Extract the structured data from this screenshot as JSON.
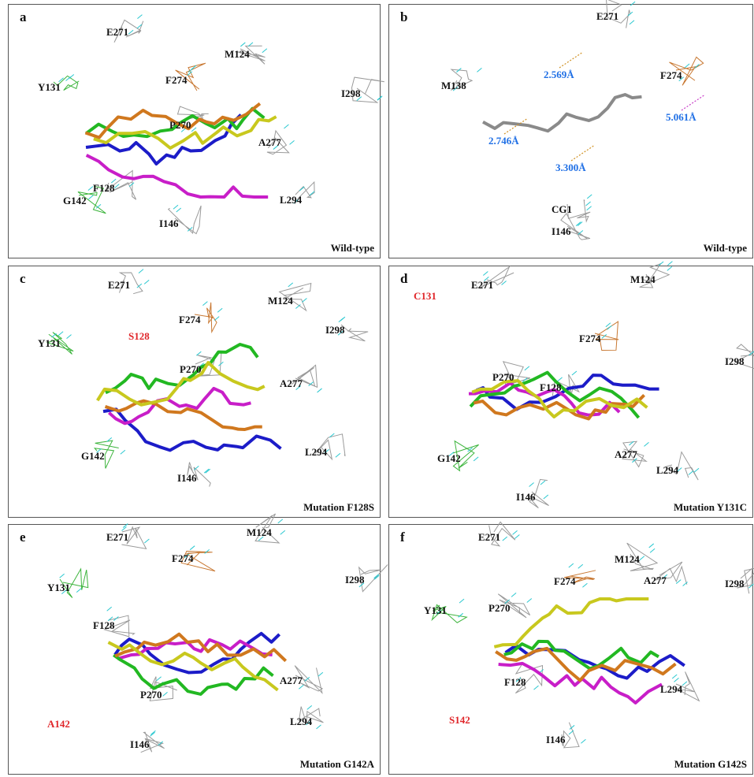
{
  "panels": [
    {
      "letter": "a",
      "condition": "Wild-type",
      "residues": [
        "E271",
        "M124",
        "F274",
        "Y131",
        "I298",
        "P270",
        "A277",
        "F128",
        "G142",
        "L294",
        "I146"
      ]
    },
    {
      "letter": "b",
      "condition": "Wild-type",
      "residues": [
        "E271",
        "M138",
        "F274",
        "CG1",
        "I146"
      ],
      "distances": [
        "2.569Å",
        "2.746Å",
        "3.300Å",
        "5.061Å"
      ]
    },
    {
      "letter": "c",
      "condition": "Mutation F128S",
      "residues": [
        "E271",
        "M124",
        "F274",
        "Y131",
        "I298",
        "P270",
        "A277",
        "G142",
        "L294",
        "I146"
      ],
      "mutant": "S128"
    },
    {
      "letter": "d",
      "condition": "Mutation Y131C",
      "residues": [
        "E271",
        "M124",
        "F274",
        "I298",
        "P270",
        "F128",
        "A277",
        "G142",
        "L294",
        "I146"
      ],
      "mutant": "C131"
    },
    {
      "letter": "e",
      "condition": "Mutation G142A",
      "residues": [
        "E271",
        "M124",
        "F274",
        "Y131",
        "I298",
        "F128",
        "A277",
        "P270",
        "L294",
        "I146"
      ],
      "mutant": "A142"
    },
    {
      "letter": "f",
      "condition": "Mutation G142S",
      "residues": [
        "E271",
        "M124",
        "F274",
        "A277",
        "Y131",
        "P270",
        "I298",
        "F128",
        "L294",
        "I146"
      ],
      "mutant": "S142"
    }
  ]
}
